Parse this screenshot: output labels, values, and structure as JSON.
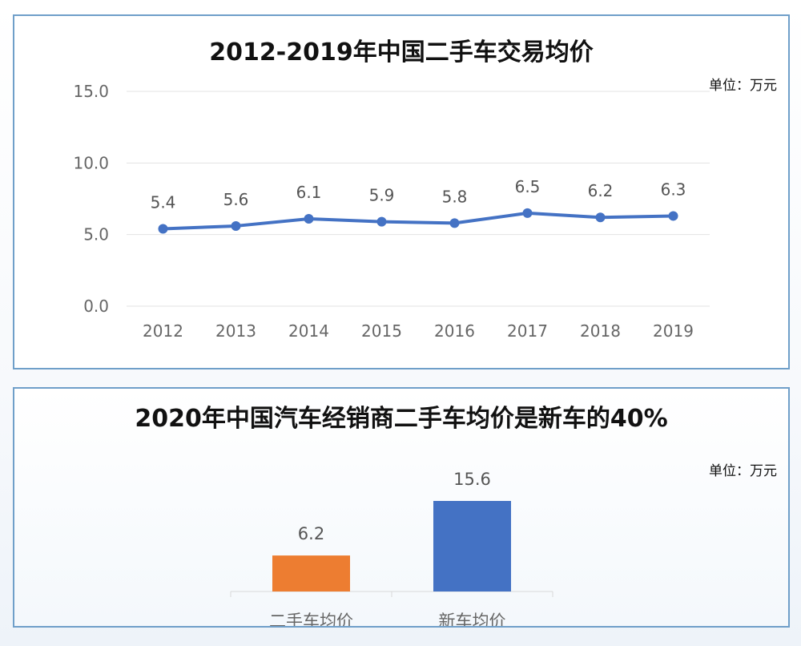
{
  "chart_data": [
    {
      "type": "line",
      "title": "2012-2019年中国二手车交易均价",
      "unit_label": "单位：万元",
      "categories": [
        "2012",
        "2013",
        "2014",
        "2015",
        "2016",
        "2017",
        "2018",
        "2019"
      ],
      "series": [
        {
          "values": [
            5.4,
            5.6,
            6.1,
            5.9,
            5.8,
            6.5,
            6.2,
            6.3
          ]
        }
      ],
      "y_ticks": [
        "0.0",
        "5.0",
        "10.0",
        "15.0"
      ],
      "ylim": [
        0,
        15
      ],
      "grid": true,
      "color": "#4472c4"
    },
    {
      "type": "bar",
      "title": "2020年中国汽车经销商二手车均价是新车的40%",
      "unit_label": "单位：万元",
      "categories": [
        "二手车均价",
        "新车均价"
      ],
      "values": [
        6.2,
        15.6
      ],
      "colors": [
        "#ed7d31",
        "#4472c4"
      ]
    }
  ]
}
